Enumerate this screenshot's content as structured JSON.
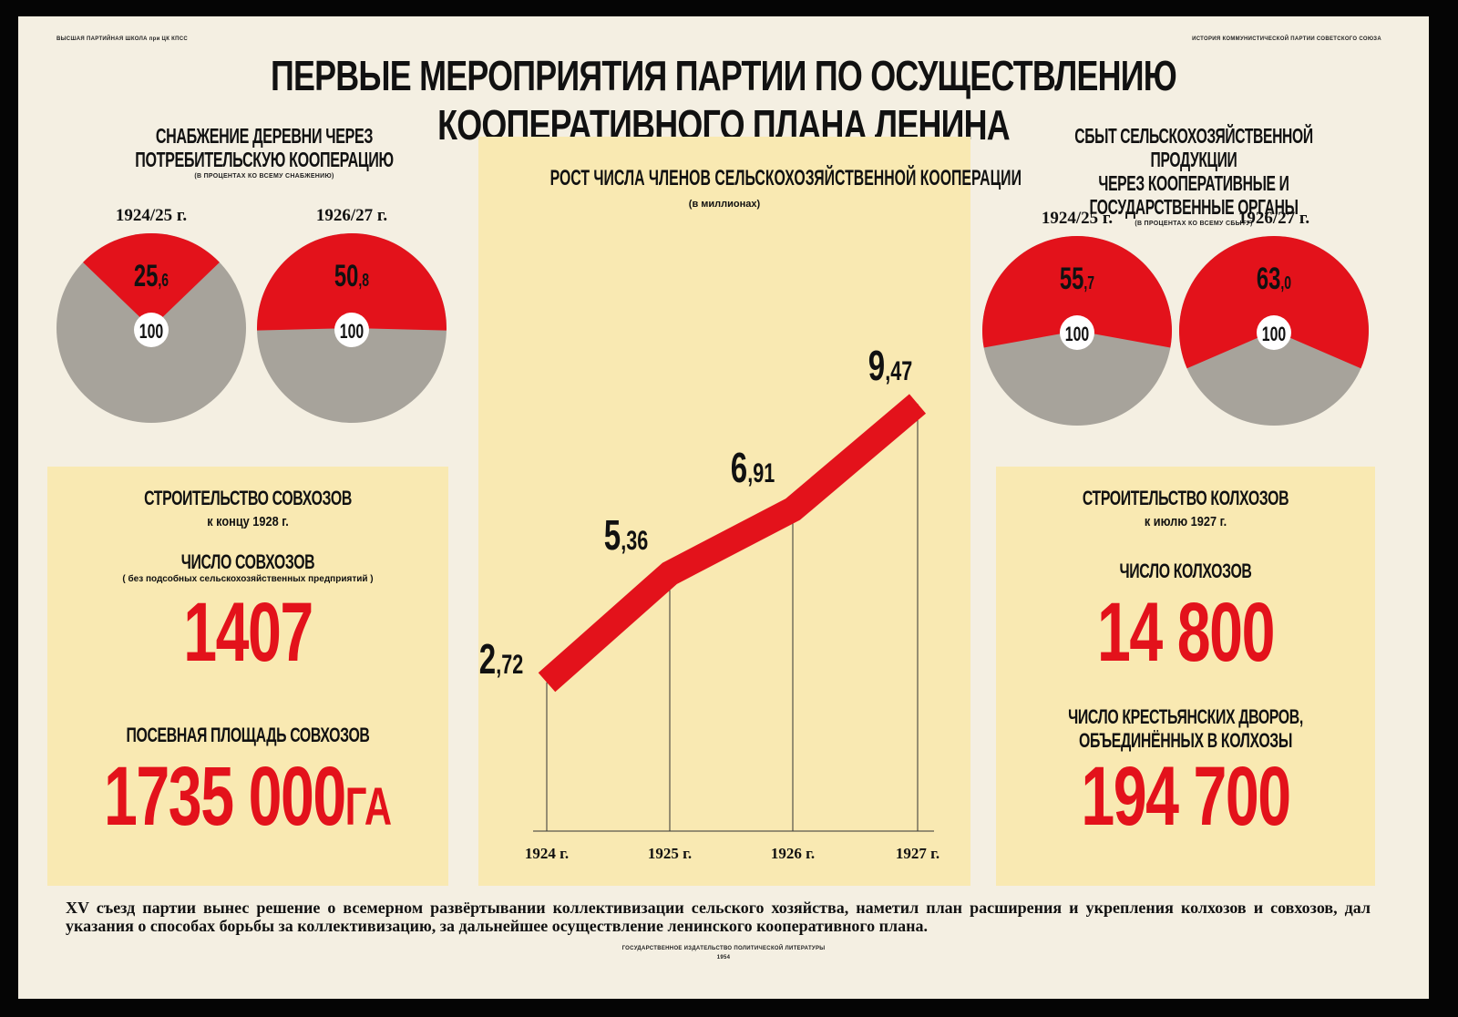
{
  "header": {
    "left_note": "ВЫСШАЯ ПАРТИЙНАЯ ШКОЛА при ЦК КПСС",
    "right_note": "ИСТОРИЯ КОММУНИСТИЧЕСКОЙ ПАРТИИ СОВЕТСКОГО СОЮЗА",
    "title": "ПЕРВЫЕ МЕРОПРИЯТИЯ ПАРТИИ ПО ОСУЩЕСТВЛЕНИЮ КООПЕРАТИВНОГО ПЛАНА ЛЕНИНА"
  },
  "colors": {
    "red": "#e3121b",
    "grey": "#a7a39b",
    "panel": "#f9e9b2",
    "paper": "#f4efe2"
  },
  "left_section": {
    "title_line1": "СНАБЖЕНИЕ ДЕРЕВНИ ЧЕРЕЗ",
    "title_line2": "ПОТРЕБИТЕЛЬСКУЮ КООПЕРАЦИЮ",
    "subtitle": "(В ПРОЦЕНТАХ КО ВСЕМУ СНАБЖЕНИЮ)"
  },
  "right_section": {
    "title_line1": "СБЫТ СЕЛЬСКОХОЗЯЙСТВЕННОЙ ПРОДУКЦИИ",
    "title_line2": "ЧЕРЕЗ КООПЕРАТИВНЫЕ И ГОСУДАРСТВЕННЫЕ ОРГАНЫ",
    "subtitle": "(В ПРОЦЕНТАХ КО ВСЕМУ СБЫТУ)"
  },
  "sovkhoz_panel": {
    "title": "СТРОИТЕЛЬСТВО СОВХОЗОВ",
    "date": "к концу 1928 г.",
    "count_label": "ЧИСЛО СОВХОЗОВ",
    "count_note": "( без подсобных сельскохозяйственных предприятий )",
    "count_value": "1407",
    "area_label": "ПОСЕВНАЯ ПЛОЩАДЬ СОВХОЗОВ",
    "area_value": "1735 000",
    "area_unit": "ГА"
  },
  "kolkhoz_panel": {
    "title": "СТРОИТЕЛЬСТВО КОЛХОЗОВ",
    "date": "к июлю 1927 г.",
    "count_label": "ЧИСЛО КОЛХОЗОВ",
    "count_value": "14 800",
    "households_label_line1": "ЧИСЛО КРЕСТЬЯНСКИХ ДВОРОВ,",
    "households_label_line2": "ОБЪЕДИНЁННЫХ В КОЛХОЗЫ",
    "households_value": "194 700"
  },
  "footer": {
    "text": "XV съезд партии вынес решение о всемерном развёртывании коллективизации сельского хозяйства, наметил план расширения и укрепления колхозов и совхозов, дал указания о способах борьбы за коллективизацию, за дальнейшее осуществление ленинского кооперативного плана.",
    "publisher_line1": "ГОСУДАРСТВЕННОЕ ИЗДАТЕЛЬСТВО ПОЛИТИЧЕСКОЙ ЛИТЕРАТУРЫ",
    "publisher_line2": "1954"
  },
  "chart_data": [
    {
      "type": "pie",
      "group": "supply",
      "label": "1924/25 г.",
      "values": [
        25.6,
        74.4
      ],
      "value_label_int": "25",
      "value_label_dec": ",6",
      "total_label": "100",
      "colors": [
        "#e3121b",
        "#a7a39b"
      ]
    },
    {
      "type": "pie",
      "group": "supply",
      "label": "1926/27 г.",
      "values": [
        50.8,
        49.2
      ],
      "value_label_int": "50",
      "value_label_dec": ",8",
      "total_label": "100",
      "colors": [
        "#e3121b",
        "#a7a39b"
      ]
    },
    {
      "type": "pie",
      "group": "sales",
      "label": "1924/25 г.",
      "values": [
        55.7,
        44.3
      ],
      "value_label_int": "55",
      "value_label_dec": ",7",
      "total_label": "100",
      "colors": [
        "#e3121b",
        "#a7a39b"
      ]
    },
    {
      "type": "pie",
      "group": "sales",
      "label": "1926/27 г.",
      "values": [
        63.0,
        37.0
      ],
      "value_label_int": "63",
      "value_label_dec": ",0",
      "total_label": "100",
      "colors": [
        "#e3121b",
        "#a7a39b"
      ]
    },
    {
      "type": "line",
      "title": "РОСТ ЧИСЛА ЧЛЕНОВ СЕЛЬСКОХОЗЯЙСТВЕННОЙ КООПЕРАЦИИ",
      "subtitle": "(в миллионах)",
      "categories": [
        "1924 г.",
        "1925 г.",
        "1926 г.",
        "1927 г."
      ],
      "values": [
        2.72,
        5.36,
        6.91,
        9.47
      ],
      "value_labels_int": [
        "2",
        "5",
        "6",
        "9"
      ],
      "value_labels_dec": [
        ",72",
        ",36",
        ",91",
        ",47"
      ],
      "ylim": [
        0,
        10
      ],
      "grid": false,
      "color": "#e3121b"
    }
  ]
}
